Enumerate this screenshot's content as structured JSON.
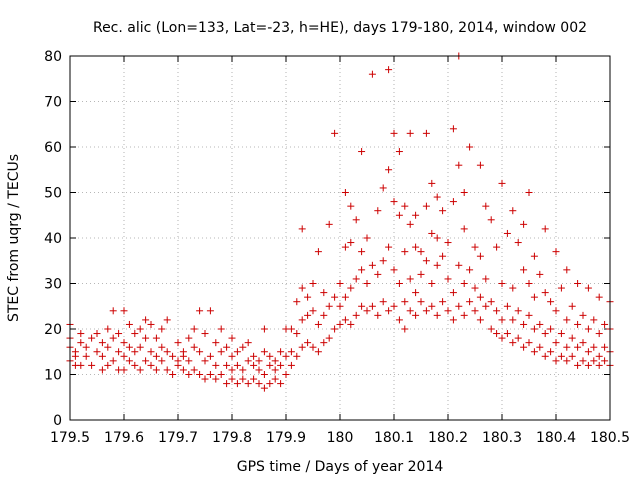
{
  "chart_data": {
    "type": "scatter",
    "title": "Rec. alic (Lon=133, Lat=-23, h=HE), days 179-180, 2014, window 002",
    "xlabel": "GPS time / Days of year 2014",
    "ylabel": "STEC from uqrg / TECUs",
    "xlim": [
      179.5,
      180.5
    ],
    "ylim": [
      0,
      80
    ],
    "xticks": [
      "179.5",
      "179.6",
      "179.7",
      "179.8",
      "179.9",
      "180",
      "180.1",
      "180.2",
      "180.3",
      "180.4",
      "180.5"
    ],
    "yticks": [
      "0",
      "10",
      "20",
      "30",
      "40",
      "50",
      "60",
      "70",
      "80"
    ],
    "grid": true,
    "marker": "plus",
    "color": "#cc0000",
    "points": [
      [
        179.5,
        13
      ],
      [
        179.5,
        16
      ],
      [
        179.5,
        18
      ],
      [
        179.5,
        21
      ],
      [
        179.51,
        12
      ],
      [
        179.51,
        14
      ],
      [
        179.51,
        15
      ],
      [
        179.52,
        12
      ],
      [
        179.52,
        17
      ],
      [
        179.52,
        19
      ],
      [
        179.53,
        14
      ],
      [
        179.53,
        16
      ],
      [
        179.54,
        12
      ],
      [
        179.54,
        18
      ],
      [
        179.55,
        15
      ],
      [
        179.55,
        19
      ],
      [
        179.56,
        11
      ],
      [
        179.56,
        14
      ],
      [
        179.56,
        17
      ],
      [
        179.57,
        12
      ],
      [
        179.57,
        16
      ],
      [
        179.57,
        20
      ],
      [
        179.58,
        13
      ],
      [
        179.58,
        18
      ],
      [
        179.58,
        24
      ],
      [
        179.59,
        11
      ],
      [
        179.59,
        15
      ],
      [
        179.59,
        19
      ],
      [
        179.6,
        11
      ],
      [
        179.6,
        14
      ],
      [
        179.6,
        17
      ],
      [
        179.6,
        24
      ],
      [
        179.61,
        13
      ],
      [
        179.61,
        16
      ],
      [
        179.61,
        21
      ],
      [
        179.62,
        12
      ],
      [
        179.62,
        15
      ],
      [
        179.62,
        19
      ],
      [
        179.63,
        11
      ],
      [
        179.63,
        16
      ],
      [
        179.63,
        20
      ],
      [
        179.64,
        13
      ],
      [
        179.64,
        18
      ],
      [
        179.64,
        22
      ],
      [
        179.65,
        12
      ],
      [
        179.65,
        15
      ],
      [
        179.65,
        21
      ],
      [
        179.66,
        11
      ],
      [
        179.66,
        14
      ],
      [
        179.66,
        18
      ],
      [
        179.67,
        13
      ],
      [
        179.67,
        16
      ],
      [
        179.67,
        20
      ],
      [
        179.68,
        11
      ],
      [
        179.68,
        15
      ],
      [
        179.68,
        22
      ],
      [
        179.69,
        10
      ],
      [
        179.69,
        14
      ],
      [
        179.7,
        12
      ],
      [
        179.7,
        13
      ],
      [
        179.7,
        17
      ],
      [
        179.71,
        11
      ],
      [
        179.71,
        14
      ],
      [
        179.71,
        15
      ],
      [
        179.72,
        10
      ],
      [
        179.72,
        13
      ],
      [
        179.72,
        18
      ],
      [
        179.73,
        11
      ],
      [
        179.73,
        16
      ],
      [
        179.73,
        20
      ],
      [
        179.74,
        10
      ],
      [
        179.74,
        15
      ],
      [
        179.74,
        24
      ],
      [
        179.75,
        9
      ],
      [
        179.75,
        13
      ],
      [
        179.75,
        19
      ],
      [
        179.76,
        10
      ],
      [
        179.76,
        14
      ],
      [
        179.76,
        24
      ],
      [
        179.77,
        9
      ],
      [
        179.77,
        12
      ],
      [
        179.77,
        17
      ],
      [
        179.78,
        10
      ],
      [
        179.78,
        15
      ],
      [
        179.78,
        20
      ],
      [
        179.79,
        8
      ],
      [
        179.79,
        12
      ],
      [
        179.79,
        16
      ],
      [
        179.8,
        9
      ],
      [
        179.8,
        11
      ],
      [
        179.8,
        14
      ],
      [
        179.8,
        18
      ],
      [
        179.81,
        8
      ],
      [
        179.81,
        12
      ],
      [
        179.81,
        15
      ],
      [
        179.82,
        9
      ],
      [
        179.82,
        11
      ],
      [
        179.82,
        16
      ],
      [
        179.83,
        8
      ],
      [
        179.83,
        13
      ],
      [
        179.83,
        17
      ],
      [
        179.84,
        9
      ],
      [
        179.84,
        12
      ],
      [
        179.84,
        14
      ],
      [
        179.85,
        8
      ],
      [
        179.85,
        11
      ],
      [
        179.85,
        13
      ],
      [
        179.86,
        7
      ],
      [
        179.86,
        10
      ],
      [
        179.86,
        15
      ],
      [
        179.86,
        20
      ],
      [
        179.87,
        8
      ],
      [
        179.87,
        12
      ],
      [
        179.87,
        14
      ],
      [
        179.88,
        9
      ],
      [
        179.88,
        11
      ],
      [
        179.88,
        13
      ],
      [
        179.89,
        8
      ],
      [
        179.89,
        12
      ],
      [
        179.89,
        15
      ],
      [
        179.9,
        10
      ],
      [
        179.9,
        14
      ],
      [
        179.9,
        20
      ],
      [
        179.91,
        12
      ],
      [
        179.91,
        15
      ],
      [
        179.91,
        20
      ],
      [
        179.92,
        14
      ],
      [
        179.92,
        19
      ],
      [
        179.92,
        26
      ],
      [
        179.93,
        16
      ],
      [
        179.93,
        22
      ],
      [
        179.93,
        29
      ],
      [
        179.93,
        42
      ],
      [
        179.94,
        17
      ],
      [
        179.94,
        23
      ],
      [
        179.94,
        27
      ],
      [
        179.95,
        16
      ],
      [
        179.95,
        24
      ],
      [
        179.95,
        30
      ],
      [
        179.96,
        15
      ],
      [
        179.96,
        21
      ],
      [
        179.96,
        37
      ],
      [
        179.97,
        17
      ],
      [
        179.97,
        23
      ],
      [
        179.97,
        28
      ],
      [
        179.98,
        18
      ],
      [
        179.98,
        25
      ],
      [
        179.98,
        43
      ],
      [
        179.99,
        20
      ],
      [
        179.99,
        27
      ],
      [
        179.99,
        63
      ],
      [
        180.0,
        21
      ],
      [
        180.0,
        25
      ],
      [
        180.0,
        30
      ],
      [
        180.01,
        22
      ],
      [
        180.01,
        27
      ],
      [
        180.01,
        38
      ],
      [
        180.01,
        50
      ],
      [
        180.02,
        21
      ],
      [
        180.02,
        29
      ],
      [
        180.02,
        39
      ],
      [
        180.02,
        47
      ],
      [
        180.03,
        23
      ],
      [
        180.03,
        31
      ],
      [
        180.03,
        44
      ],
      [
        180.04,
        25
      ],
      [
        180.04,
        33
      ],
      [
        180.04,
        37
      ],
      [
        180.04,
        59
      ],
      [
        180.05,
        24
      ],
      [
        180.05,
        30
      ],
      [
        180.05,
        40
      ],
      [
        180.06,
        25
      ],
      [
        180.06,
        34
      ],
      [
        180.06,
        76
      ],
      [
        180.07,
        23
      ],
      [
        180.07,
        32
      ],
      [
        180.07,
        46
      ],
      [
        180.08,
        26
      ],
      [
        180.08,
        35
      ],
      [
        180.08,
        51
      ],
      [
        180.09,
        24
      ],
      [
        180.09,
        38
      ],
      [
        180.09,
        55
      ],
      [
        180.09,
        77
      ],
      [
        180.1,
        25
      ],
      [
        180.1,
        33
      ],
      [
        180.1,
        48
      ],
      [
        180.1,
        63
      ],
      [
        180.11,
        22
      ],
      [
        180.11,
        30
      ],
      [
        180.11,
        45
      ],
      [
        180.11,
        59
      ],
      [
        180.12,
        20
      ],
      [
        180.12,
        26
      ],
      [
        180.12,
        37
      ],
      [
        180.12,
        47
      ],
      [
        180.13,
        24
      ],
      [
        180.13,
        31
      ],
      [
        180.13,
        43
      ],
      [
        180.13,
        63
      ],
      [
        180.14,
        23
      ],
      [
        180.14,
        28
      ],
      [
        180.14,
        38
      ],
      [
        180.14,
        45
      ],
      [
        180.15,
        26
      ],
      [
        180.15,
        32
      ],
      [
        180.15,
        37
      ],
      [
        180.16,
        24
      ],
      [
        180.16,
        35
      ],
      [
        180.16,
        47
      ],
      [
        180.16,
        63
      ],
      [
        180.17,
        25
      ],
      [
        180.17,
        30
      ],
      [
        180.17,
        41
      ],
      [
        180.17,
        52
      ],
      [
        180.18,
        23
      ],
      [
        180.18,
        34
      ],
      [
        180.18,
        40
      ],
      [
        180.18,
        49
      ],
      [
        180.19,
        26
      ],
      [
        180.19,
        36
      ],
      [
        180.19,
        46
      ],
      [
        180.2,
        24
      ],
      [
        180.2,
        31
      ],
      [
        180.2,
        39
      ],
      [
        180.21,
        22
      ],
      [
        180.21,
        28
      ],
      [
        180.21,
        48
      ],
      [
        180.21,
        64
      ],
      [
        180.22,
        25
      ],
      [
        180.22,
        34
      ],
      [
        180.22,
        56
      ],
      [
        180.22,
        80
      ],
      [
        180.23,
        23
      ],
      [
        180.23,
        30
      ],
      [
        180.23,
        42
      ],
      [
        180.23,
        50
      ],
      [
        180.24,
        26
      ],
      [
        180.24,
        33
      ],
      [
        180.24,
        60
      ],
      [
        180.25,
        24
      ],
      [
        180.25,
        29
      ],
      [
        180.25,
        38
      ],
      [
        180.26,
        22
      ],
      [
        180.26,
        27
      ],
      [
        180.26,
        36
      ],
      [
        180.26,
        56
      ],
      [
        180.27,
        25
      ],
      [
        180.27,
        31
      ],
      [
        180.27,
        47
      ],
      [
        180.28,
        20
      ],
      [
        180.28,
        26
      ],
      [
        180.28,
        44
      ],
      [
        180.29,
        19
      ],
      [
        180.29,
        24
      ],
      [
        180.29,
        38
      ],
      [
        180.3,
        18
      ],
      [
        180.3,
        22
      ],
      [
        180.3,
        30
      ],
      [
        180.3,
        52
      ],
      [
        180.31,
        19
      ],
      [
        180.31,
        25
      ],
      [
        180.31,
        41
      ],
      [
        180.32,
        17
      ],
      [
        180.32,
        22
      ],
      [
        180.32,
        29
      ],
      [
        180.32,
        46
      ],
      [
        180.33,
        18
      ],
      [
        180.33,
        24
      ],
      [
        180.33,
        39
      ],
      [
        180.34,
        16
      ],
      [
        180.34,
        21
      ],
      [
        180.34,
        33
      ],
      [
        180.34,
        43
      ],
      [
        180.35,
        17
      ],
      [
        180.35,
        23
      ],
      [
        180.35,
        30
      ],
      [
        180.35,
        50
      ],
      [
        180.36,
        15
      ],
      [
        180.36,
        20
      ],
      [
        180.36,
        27
      ],
      [
        180.36,
        36
      ],
      [
        180.37,
        16
      ],
      [
        180.37,
        21
      ],
      [
        180.37,
        32
      ],
      [
        180.38,
        14
      ],
      [
        180.38,
        19
      ],
      [
        180.38,
        28
      ],
      [
        180.38,
        42
      ],
      [
        180.39,
        15
      ],
      [
        180.39,
        20
      ],
      [
        180.39,
        26
      ],
      [
        180.4,
        13
      ],
      [
        180.4,
        17
      ],
      [
        180.4,
        24
      ],
      [
        180.4,
        37
      ],
      [
        180.41,
        14
      ],
      [
        180.41,
        19
      ],
      [
        180.41,
        29
      ],
      [
        180.42,
        13
      ],
      [
        180.42,
        16
      ],
      [
        180.42,
        22
      ],
      [
        180.42,
        33
      ],
      [
        180.43,
        14
      ],
      [
        180.43,
        18
      ],
      [
        180.43,
        25
      ],
      [
        180.44,
        12
      ],
      [
        180.44,
        16
      ],
      [
        180.44,
        21
      ],
      [
        180.44,
        30
      ],
      [
        180.45,
        13
      ],
      [
        180.45,
        17
      ],
      [
        180.45,
        23
      ],
      [
        180.46,
        12
      ],
      [
        180.46,
        15
      ],
      [
        180.46,
        20
      ],
      [
        180.46,
        29
      ],
      [
        180.47,
        13
      ],
      [
        180.47,
        16
      ],
      [
        180.47,
        22
      ],
      [
        180.48,
        12
      ],
      [
        180.48,
        14
      ],
      [
        180.48,
        19
      ],
      [
        180.48,
        27
      ],
      [
        180.49,
        13
      ],
      [
        180.49,
        16
      ],
      [
        180.49,
        21
      ],
      [
        180.5,
        12
      ],
      [
        180.5,
        15
      ],
      [
        180.5,
        20
      ],
      [
        180.5,
        26
      ]
    ]
  }
}
